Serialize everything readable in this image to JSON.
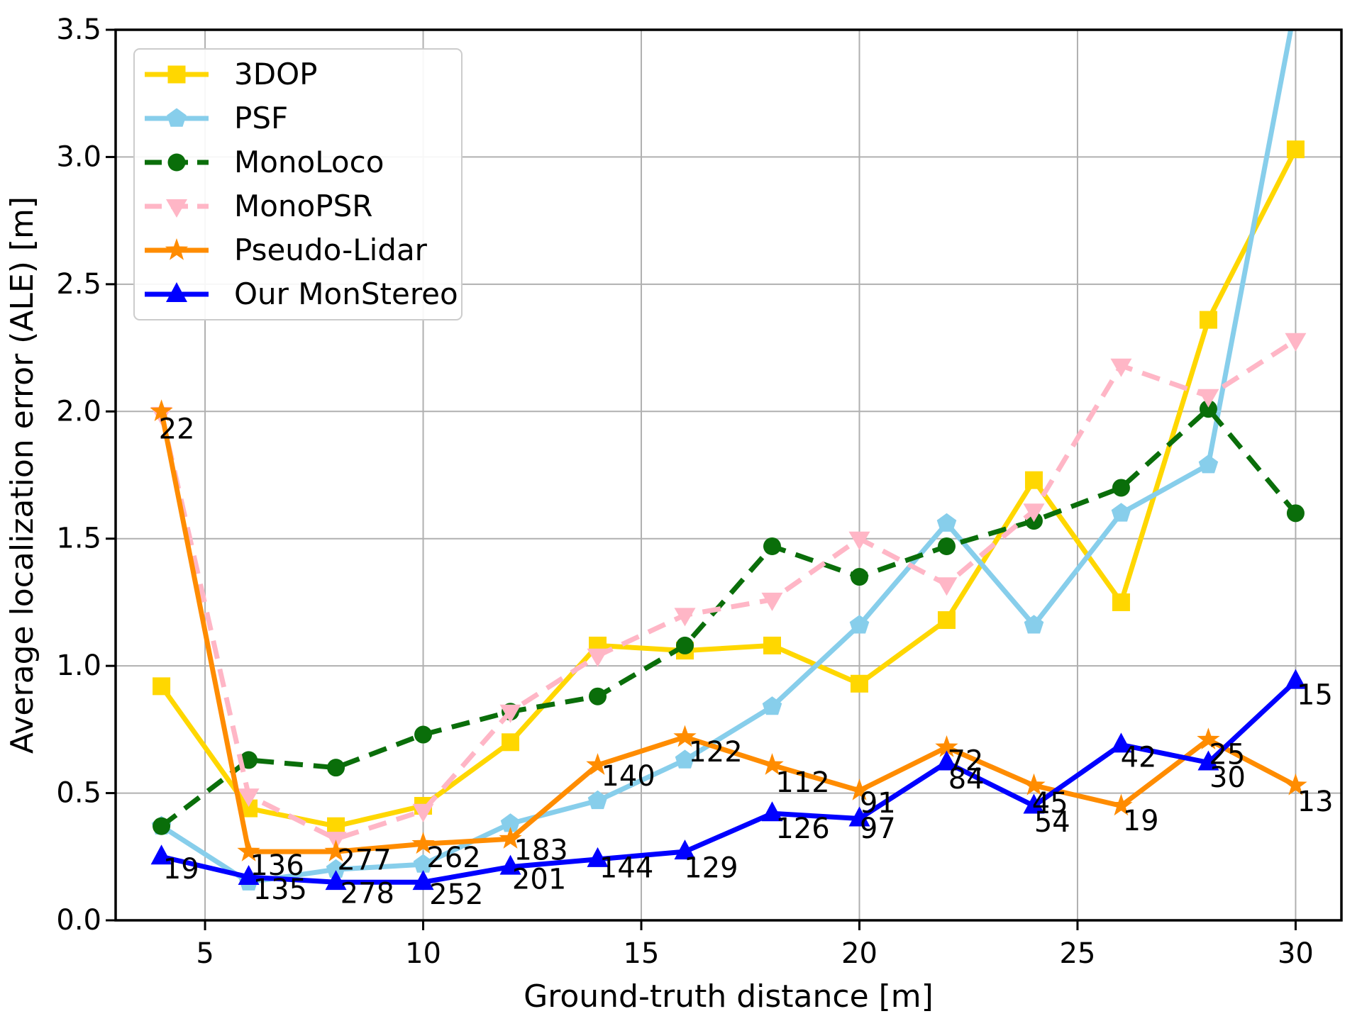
{
  "figure": {
    "background": "#ffffff",
    "text_color": "#000000",
    "grid_color": "#b0b0b0",
    "spine_color": "#000000"
  },
  "chart_data": {
    "type": "line",
    "title": "",
    "xlabel": "Ground-truth distance [m]",
    "ylabel": "Average localization error (ALE) [m]",
    "xlim": [
      2.95,
      31.05
    ],
    "ylim": [
      0,
      3.5
    ],
    "xticks": [
      "5",
      "10",
      "15",
      "20",
      "25",
      "30"
    ],
    "xtick_values": [
      5,
      10,
      15,
      20,
      25,
      30
    ],
    "yticks": [
      "0.0",
      "0.5",
      "1.0",
      "1.5",
      "2.0",
      "2.5",
      "3.0",
      "3.5"
    ],
    "ytick_values": [
      0,
      0.5,
      1,
      1.5,
      2,
      2.5,
      3,
      3.5
    ],
    "grid": true,
    "legend_position": "upper left",
    "x": [
      4,
      6,
      8,
      10,
      12,
      14,
      16,
      18,
      20,
      22,
      24,
      26,
      28,
      30
    ],
    "series": [
      {
        "name": "3DOP",
        "color": "#FFD700",
        "marker": "square",
        "dash": "solid",
        "values": [
          0.92,
          0.44,
          0.37,
          0.45,
          0.7,
          1.08,
          1.06,
          1.08,
          0.93,
          1.18,
          1.73,
          1.25,
          2.36,
          3.03
        ]
      },
      {
        "name": "PSF",
        "color": "#87CEEB",
        "marker": "pentagon",
        "dash": "solid",
        "values": [
          0.37,
          0.15,
          0.2,
          0.22,
          0.38,
          0.47,
          0.63,
          0.84,
          1.16,
          1.56,
          1.16,
          1.6,
          1.79,
          3.6
        ]
      },
      {
        "name": "MonoLoco",
        "color": "#0a6e0a",
        "marker": "circle",
        "dash": "dashed",
        "values": [
          0.37,
          0.63,
          0.6,
          0.73,
          0.82,
          0.88,
          1.08,
          1.47,
          1.35,
          1.47,
          1.57,
          1.7,
          2.01,
          1.6
        ]
      },
      {
        "name": "MonoPSR",
        "color": "#FFB6C6",
        "marker": "triangle-down",
        "dash": "dashed",
        "values": [
          1.99,
          0.49,
          0.32,
          0.43,
          0.82,
          1.04,
          1.2,
          1.26,
          1.5,
          1.32,
          1.61,
          2.18,
          2.06,
          2.28
        ]
      },
      {
        "name": "Pseudo-Lidar",
        "color": "#FF8C00",
        "marker": "star",
        "dash": "solid",
        "values": [
          2.0,
          0.27,
          0.27,
          0.3,
          0.32,
          0.61,
          0.72,
          0.61,
          0.51,
          0.68,
          0.53,
          0.45,
          0.71,
          0.53
        ]
      },
      {
        "name": "Our MonStereo",
        "color": "#0000FF",
        "marker": "triangle-up",
        "dash": "solid",
        "values": [
          0.25,
          0.17,
          0.15,
          0.15,
          0.21,
          0.24,
          0.27,
          0.42,
          0.4,
          0.62,
          0.45,
          0.69,
          0.62,
          0.94
        ]
      }
    ],
    "annotations": [
      {
        "text": "22",
        "x": 4.35,
        "y": 1.93
      },
      {
        "text": "19",
        "x": 4.45,
        "y": 0.2
      },
      {
        "text": "136",
        "x": 6.65,
        "y": 0.215
      },
      {
        "text": "135",
        "x": 6.72,
        "y": 0.12
      },
      {
        "text": "277",
        "x": 8.65,
        "y": 0.235
      },
      {
        "text": "278",
        "x": 8.72,
        "y": 0.105
      },
      {
        "text": "262",
        "x": 10.7,
        "y": 0.245
      },
      {
        "text": "252",
        "x": 10.76,
        "y": 0.1
      },
      {
        "text": "183",
        "x": 12.7,
        "y": 0.275
      },
      {
        "text": "201",
        "x": 12.66,
        "y": 0.16
      },
      {
        "text": "140",
        "x": 14.7,
        "y": 0.565
      },
      {
        "text": "144",
        "x": 14.66,
        "y": 0.205
      },
      {
        "text": "122",
        "x": 16.7,
        "y": 0.66
      },
      {
        "text": "129",
        "x": 16.6,
        "y": 0.205
      },
      {
        "text": "112",
        "x": 18.7,
        "y": 0.54
      },
      {
        "text": "126",
        "x": 18.7,
        "y": 0.36
      },
      {
        "text": "91",
        "x": 20.42,
        "y": 0.46
      },
      {
        "text": "97",
        "x": 20.42,
        "y": 0.36
      },
      {
        "text": "72",
        "x": 22.43,
        "y": 0.625
      },
      {
        "text": "84",
        "x": 22.45,
        "y": 0.555
      },
      {
        "text": "45",
        "x": 24.37,
        "y": 0.46
      },
      {
        "text": "54",
        "x": 24.42,
        "y": 0.385
      },
      {
        "text": "42",
        "x": 26.4,
        "y": 0.64
      },
      {
        "text": "19",
        "x": 26.45,
        "y": 0.39
      },
      {
        "text": "25",
        "x": 28.43,
        "y": 0.65
      },
      {
        "text": "30",
        "x": 28.44,
        "y": 0.56
      },
      {
        "text": "15",
        "x": 30.44,
        "y": 0.885
      },
      {
        "text": "13",
        "x": 30.45,
        "y": 0.465
      }
    ]
  }
}
